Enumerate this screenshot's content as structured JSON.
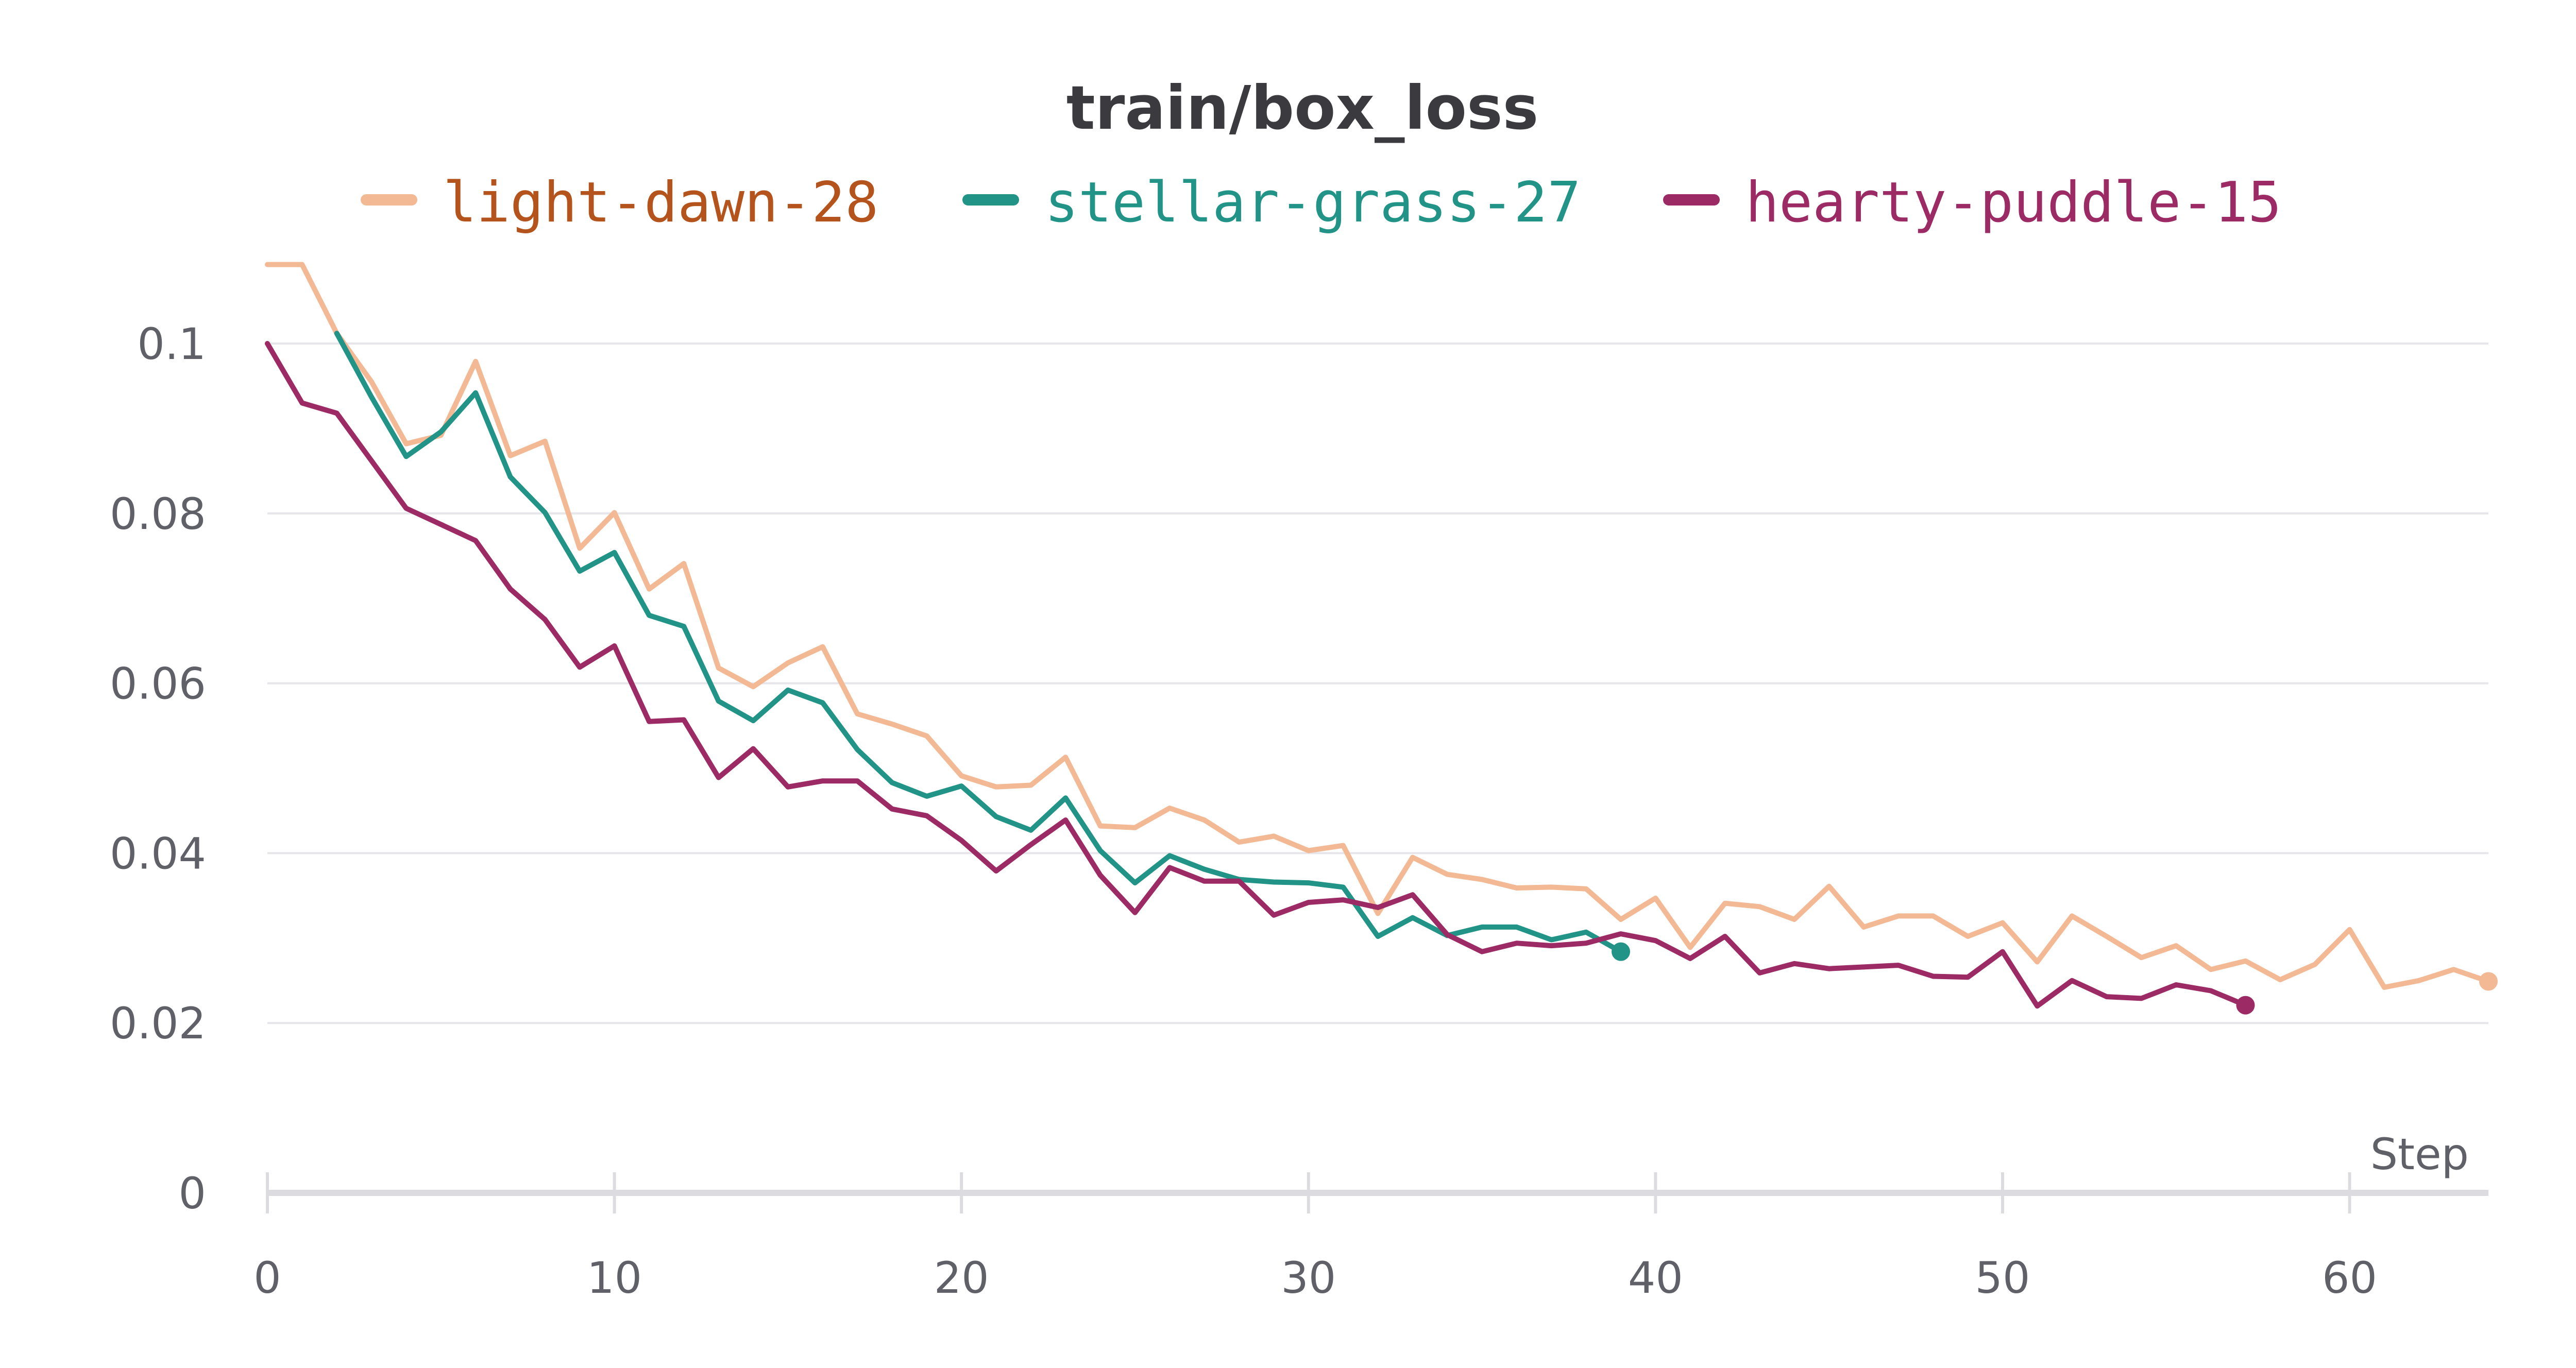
{
  "chart_data": {
    "type": "line",
    "title": "train/box_loss",
    "xlabel": "Step",
    "ylabel": "",
    "xlim": [
      0,
      64
    ],
    "ylim": [
      0,
      0.1
    ],
    "x_ticks": [
      0,
      10,
      20,
      30,
      40,
      50,
      60
    ],
    "x_tick_labels": [
      "0",
      "10",
      "20",
      "30",
      "40",
      "50",
      "60"
    ],
    "y_ticks": [
      0,
      0.02,
      0.04,
      0.06,
      0.08,
      0.1
    ],
    "y_tick_labels": [
      "0",
      "0.02",
      "0.04",
      "0.06",
      "0.08",
      "0.1"
    ],
    "grid": "horizontal",
    "legend_position": "top",
    "series": [
      {
        "name": "light-dawn-28",
        "color": "#f2b994",
        "label_color": "#b5531c",
        "values": [
          0.1093,
          0.1093,
          0.1012,
          0.0955,
          0.0882,
          0.0892,
          0.0979,
          0.0868,
          0.0885,
          0.0759,
          0.0801,
          0.0711,
          0.0741,
          0.0618,
          0.0596,
          0.0624,
          0.0643,
          0.0564,
          0.0552,
          0.0538,
          0.0491,
          0.0478,
          0.048,
          0.0513,
          0.0432,
          0.043,
          0.0453,
          0.0439,
          0.0413,
          0.042,
          0.0403,
          0.0409,
          0.0329,
          0.0395,
          0.0375,
          0.0369,
          0.0359,
          0.036,
          0.0358,
          0.0322,
          0.0347,
          0.0289,
          0.0341,
          0.0337,
          0.0322,
          0.0361,
          0.0313,
          0.0326,
          0.0326,
          0.0302,
          0.0318,
          0.0272,
          0.0326,
          0.0302,
          0.0277,
          0.0291,
          0.0263,
          0.0273,
          0.0251,
          0.0269,
          0.031,
          0.0242,
          0.025,
          0.0263,
          0.0249
        ]
      },
      {
        "name": "stellar-grass-27",
        "color": "#229487",
        "label_color": "#229487",
        "values": [
          null,
          null,
          0.1012,
          0.0937,
          0.0867,
          0.0896,
          0.0942,
          0.0843,
          0.0801,
          0.0732,
          0.0754,
          0.068,
          0.0667,
          0.0579,
          0.0556,
          0.0592,
          0.0577,
          0.0522,
          0.0483,
          0.0467,
          0.0479,
          0.0443,
          0.0427,
          0.0465,
          0.0403,
          0.0365,
          0.0397,
          0.0381,
          0.0369,
          0.0366,
          0.0365,
          0.036,
          0.0302,
          0.0324,
          0.0303,
          0.0313,
          0.0313,
          0.0298,
          0.0307,
          0.0284
        ]
      },
      {
        "name": "hearty-puddle-15",
        "color": "#9c2a64",
        "label_color": "#9c2a64",
        "values": [
          0.1,
          0.093,
          0.0918,
          0.0862,
          0.0806,
          0.0787,
          0.0768,
          0.0711,
          0.0675,
          0.0619,
          0.0644,
          0.0555,
          0.0557,
          0.0489,
          0.0523,
          0.0478,
          0.0485,
          0.0485,
          0.0452,
          0.0444,
          0.0415,
          0.0379,
          0.041,
          0.0439,
          0.0374,
          0.033,
          0.0383,
          0.0367,
          0.0367,
          0.0327,
          0.0342,
          0.0345,
          0.0336,
          0.0351,
          0.0304,
          0.0284,
          0.0294,
          0.0291,
          0.0294,
          0.0305,
          0.0297,
          0.0276,
          0.0302,
          0.0259,
          0.027,
          0.0264,
          0.0266,
          0.0268,
          0.0255,
          0.0254,
          0.0284,
          0.022,
          0.025,
          0.0231,
          0.0229,
          0.0245,
          0.0238,
          0.0221
        ]
      }
    ]
  }
}
